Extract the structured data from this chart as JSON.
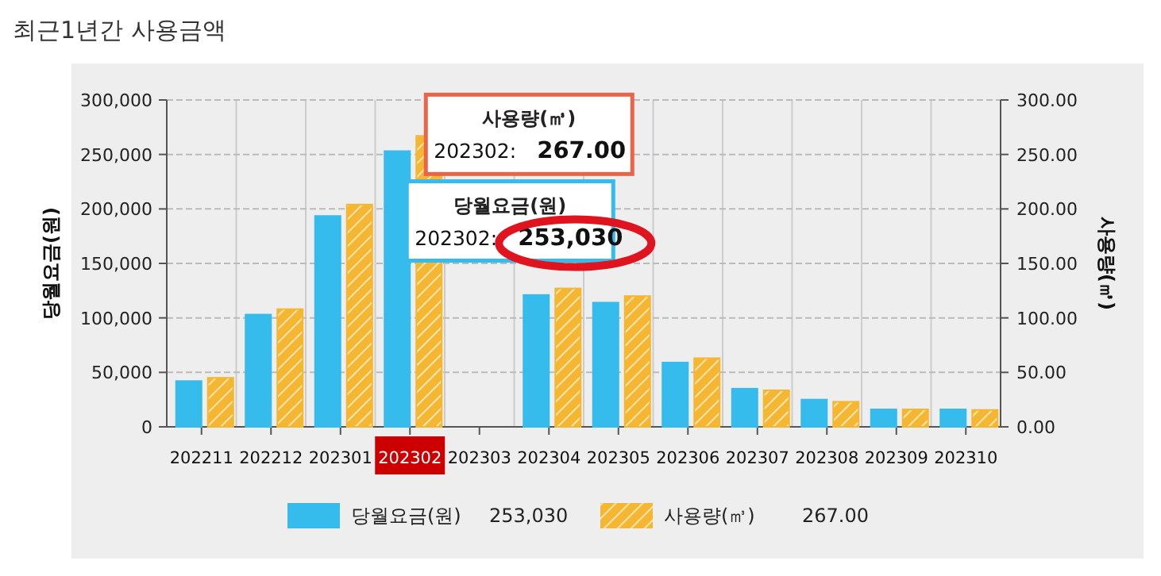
{
  "chart_data": {
    "type": "bar",
    "title": "최근1년간 사용금액",
    "ylabel": "당월요금(원)",
    "y2label": "사용량(㎥)",
    "categories": [
      "202211",
      "202212",
      "202301",
      "202302",
      "202303",
      "202304",
      "202305",
      "202306",
      "202307",
      "202308",
      "202309",
      "202310"
    ],
    "series": [
      {
        "name": "당월요금(원)",
        "color": "#36bbed",
        "values": [
          42000,
          103000,
          193500,
          253030,
          null,
          121000,
          114000,
          59000,
          35000,
          25000,
          16000,
          16000
        ]
      },
      {
        "name": "사용량(㎥)",
        "color": "#f5b731",
        "axis": "y2",
        "values": [
          45,
          108,
          204,
          267,
          null,
          127,
          120,
          63,
          33.5,
          23,
          16,
          15.5
        ]
      }
    ],
    "ylim": [
      0,
      300000
    ],
    "yticks": [
      {
        "value": 0,
        "label": "0"
      },
      {
        "value": 50000,
        "label": "50,000"
      },
      {
        "value": 100000,
        "label": "100,000"
      },
      {
        "value": 150000,
        "label": "150,000"
      },
      {
        "value": 200000,
        "label": "200,000"
      },
      {
        "value": 250000,
        "label": "250,000"
      },
      {
        "value": 300000,
        "label": "300,000"
      }
    ],
    "y2lim": [
      0,
      300
    ],
    "y2ticks": [
      {
        "value": 0,
        "label": "0.00"
      },
      {
        "value": 50,
        "label": "50.00"
      },
      {
        "value": 100,
        "label": "100.00"
      },
      {
        "value": 150,
        "label": "150.00"
      },
      {
        "value": 200,
        "label": "200.00"
      },
      {
        "value": 250,
        "label": "250.00"
      },
      {
        "value": 300,
        "label": "300.00"
      }
    ],
    "grid": true,
    "legend": "bottom",
    "annotations": [
      "사용량(㎥)\n202302: 267.00",
      {
        "text": "당월요금(원)\n202302: 253,030",
        "x": "202302",
        "y": 253030
      },
      "253,030",
      "267.00"
    ]
  }
}
